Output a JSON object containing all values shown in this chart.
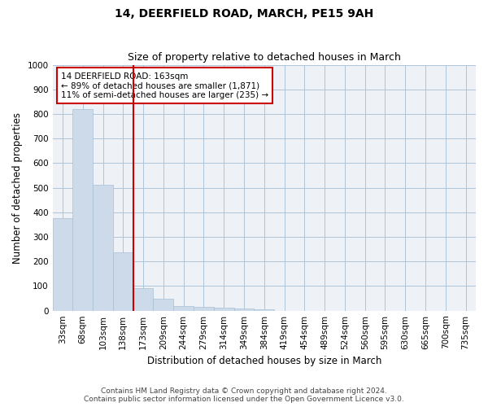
{
  "title": "14, DEERFIELD ROAD, MARCH, PE15 9AH",
  "subtitle": "Size of property relative to detached houses in March",
  "xlabel": "Distribution of detached houses by size in March",
  "ylabel": "Number of detached properties",
  "bar_color": "#ccdaea",
  "bar_edge_color": "#a8c0d4",
  "categories": [
    "33sqm",
    "68sqm",
    "103sqm",
    "138sqm",
    "173sqm",
    "209sqm",
    "244sqm",
    "279sqm",
    "314sqm",
    "349sqm",
    "384sqm",
    "419sqm",
    "454sqm",
    "489sqm",
    "524sqm",
    "560sqm",
    "595sqm",
    "630sqm",
    "665sqm",
    "700sqm",
    "735sqm"
  ],
  "values": [
    375,
    820,
    512,
    236,
    91,
    50,
    20,
    15,
    13,
    8,
    5,
    0,
    0,
    0,
    0,
    0,
    0,
    0,
    0,
    0,
    0
  ],
  "ylim": [
    0,
    1000
  ],
  "yticks": [
    0,
    100,
    200,
    300,
    400,
    500,
    600,
    700,
    800,
    900,
    1000
  ],
  "vline_color": "#cc0000",
  "annotation_text": "14 DEERFIELD ROAD: 163sqm\n← 89% of detached houses are smaller (1,871)\n11% of semi-detached houses are larger (235) →",
  "annotation_box_color": "#ffffff",
  "annotation_box_edge": "#cc0000",
  "footer1": "Contains HM Land Registry data © Crown copyright and database right 2024.",
  "footer2": "Contains public sector information licensed under the Open Government Licence v3.0.",
  "background_color": "#eef2f7",
  "grid_color": "#b0c4d8",
  "title_fontsize": 10,
  "subtitle_fontsize": 9,
  "axis_label_fontsize": 8.5,
  "tick_fontsize": 7.5,
  "annotation_fontsize": 7.5,
  "footer_fontsize": 6.5
}
